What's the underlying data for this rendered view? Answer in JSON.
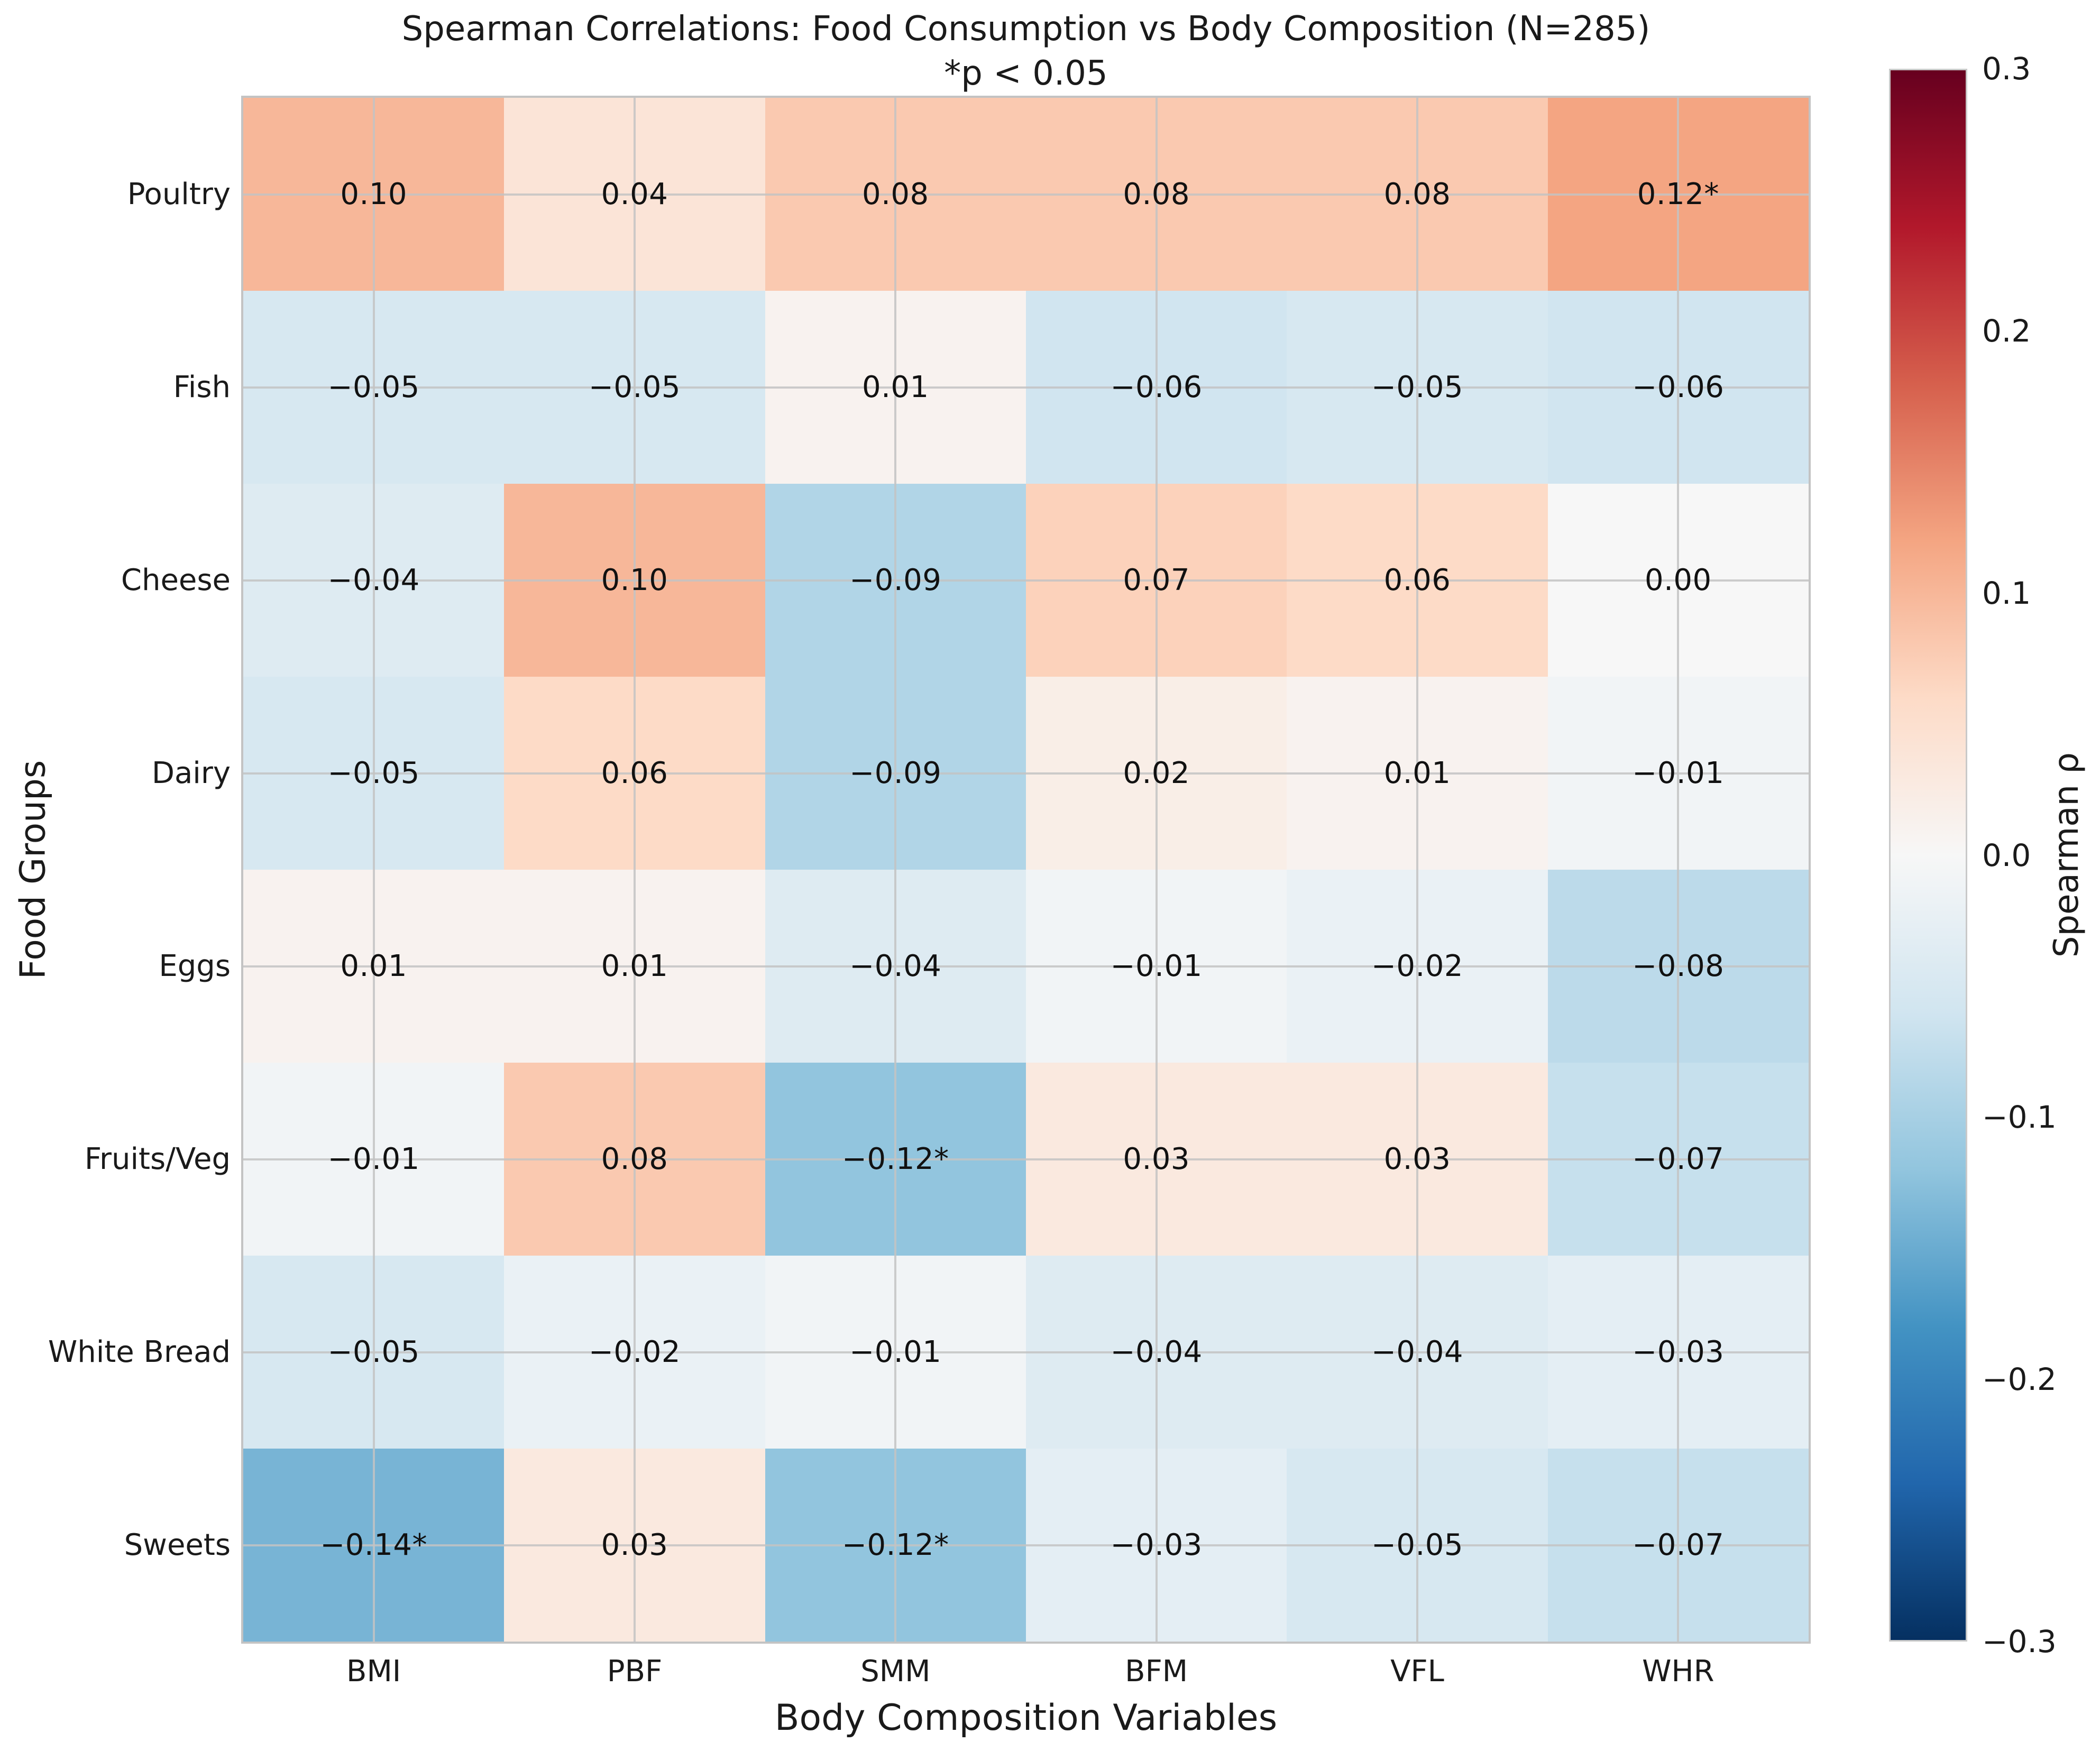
{
  "title": "Spearman Correlations: Food Consumption vs Body Composition (N=285)",
  "subtitle": "*p < 0.05",
  "x_axis_label": "Body Composition Variables",
  "y_axis_label": "Food Groups",
  "colorbar": {
    "label": "Spearman ρ",
    "ticks": [
      "0.3",
      "0.2",
      "0.1",
      "0.0",
      "−0.1",
      "−0.2",
      "−0.3"
    ],
    "vmin": -0.3,
    "vmax": 0.3
  },
  "chart_data": {
    "type": "heatmap",
    "title": "Spearman Correlations: Food Consumption vs Body Composition (N=285)",
    "subtitle": "*p < 0.05",
    "xlabel": "Body Composition Variables",
    "ylabel": "Food Groups",
    "columns": [
      "BMI",
      "PBF",
      "SMM",
      "BFM",
      "VFL",
      "WHR"
    ],
    "rows": [
      "Poultry",
      "Fish",
      "Cheese",
      "Dairy",
      "Eggs",
      "Fruits/Veg",
      "White Bread",
      "Sweets"
    ],
    "values": [
      [
        0.1,
        0.04,
        0.08,
        0.08,
        0.08,
        0.12
      ],
      [
        -0.05,
        -0.05,
        0.01,
        -0.06,
        -0.05,
        -0.06
      ],
      [
        -0.04,
        0.1,
        -0.09,
        0.07,
        0.06,
        0.0
      ],
      [
        -0.05,
        0.06,
        -0.09,
        0.02,
        0.01,
        -0.01
      ],
      [
        0.01,
        0.01,
        -0.04,
        -0.01,
        -0.02,
        -0.08
      ],
      [
        -0.01,
        0.08,
        -0.12,
        0.03,
        0.03,
        -0.07
      ],
      [
        -0.05,
        -0.02,
        -0.01,
        -0.04,
        -0.04,
        -0.03
      ],
      [
        -0.14,
        0.03,
        -0.12,
        -0.03,
        -0.05,
        -0.07
      ]
    ],
    "labels": [
      [
        "0.10",
        "0.04",
        "0.08",
        "0.08",
        "0.08",
        "0.12*"
      ],
      [
        "−0.05",
        "−0.05",
        "0.01",
        "−0.06",
        "−0.05",
        "−0.06"
      ],
      [
        "−0.04",
        "0.10",
        "−0.09",
        "0.07",
        "0.06",
        "0.00"
      ],
      [
        "−0.05",
        "0.06",
        "−0.09",
        "0.02",
        "0.01",
        "−0.01"
      ],
      [
        "0.01",
        "0.01",
        "−0.04",
        "−0.01",
        "−0.02",
        "−0.08"
      ],
      [
        "−0.01",
        "0.08",
        "−0.12*",
        "0.03",
        "0.03",
        "−0.07"
      ],
      [
        "−0.05",
        "−0.02",
        "−0.01",
        "−0.04",
        "−0.04",
        "−0.03"
      ],
      [
        "−0.14*",
        "0.03",
        "−0.12*",
        "−0.03",
        "−0.05",
        "−0.07"
      ]
    ],
    "vmin": -0.3,
    "vmax": 0.3,
    "colormap": "RdBu_r",
    "colormap_stops": [
      [
        0.0,
        "#053061"
      ],
      [
        0.1,
        "#2166ac"
      ],
      [
        0.2,
        "#4393c3"
      ],
      [
        0.3,
        "#92c5de"
      ],
      [
        0.4,
        "#d1e5f0"
      ],
      [
        0.5,
        "#f7f7f7"
      ],
      [
        0.6,
        "#fddbc7"
      ],
      [
        0.7,
        "#f4a582"
      ],
      [
        0.8,
        "#d6604d"
      ],
      [
        0.9,
        "#b2182b"
      ],
      [
        1.0,
        "#67001f"
      ]
    ],
    "grid": true,
    "legend_position": "right-colorbar"
  }
}
